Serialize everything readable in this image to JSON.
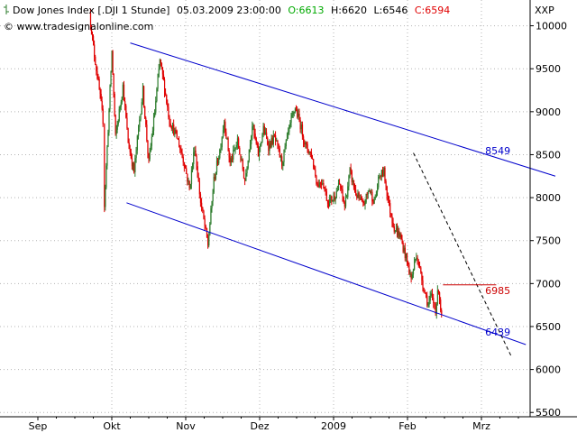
{
  "header": {
    "symbol_icon": "candlestick-icon",
    "instrument": "Dow Jones Index [.DJI  1 Stunde]",
    "datetime": "05.03.2009 23:00:00",
    "open": "O:6613",
    "high": "H:6620",
    "low": "L:6546",
    "close": "C:6594",
    "source": "© www.tradesignalonline.com",
    "axis_unit": "XXP"
  },
  "colors": {
    "up": "#2e7d2e",
    "down": "#e00000",
    "channel": "#0000cc",
    "trend": "#000000",
    "close_line": "#cc0000",
    "grid": "#b4b4b4"
  },
  "chart_data": {
    "type": "candlestick",
    "title": "Dow Jones Index [.DJI  1 Stunde]",
    "ylim": [
      5450,
      10300
    ],
    "y_ticks": [
      5500,
      6000,
      6500,
      7000,
      7500,
      8000,
      8500,
      9000,
      9500,
      10000
    ],
    "x_tick_labels": [
      "Sep",
      "Okt",
      "Nov",
      "Dez",
      "2009",
      "Feb",
      "Mrz"
    ],
    "x_tick_positions": [
      0.0,
      1.0,
      2.0,
      3.0,
      4.0,
      5.0,
      6.0
    ],
    "x_range": [
      0.0,
      7.0
    ],
    "grid": true,
    "price_path": [
      [
        0.7,
        10150
      ],
      [
        0.75,
        9750
      ],
      [
        0.83,
        9250
      ],
      [
        0.88,
        8900
      ],
      [
        0.9,
        7920
      ],
      [
        0.95,
        8800
      ],
      [
        1.0,
        9700
      ],
      [
        1.05,
        8700
      ],
      [
        1.1,
        9000
      ],
      [
        1.15,
        9300
      ],
      [
        1.22,
        8650
      ],
      [
        1.3,
        8300
      ],
      [
        1.36,
        8800
      ],
      [
        1.42,
        9250
      ],
      [
        1.5,
        8400
      ],
      [
        1.58,
        9000
      ],
      [
        1.65,
        9600
      ],
      [
        1.7,
        9350
      ],
      [
        1.78,
        8900
      ],
      [
        1.88,
        8700
      ],
      [
        1.98,
        8400
      ],
      [
        2.05,
        8100
      ],
      [
        2.12,
        8600
      ],
      [
        2.2,
        7950
      ],
      [
        2.3,
        7450
      ],
      [
        2.38,
        8200
      ],
      [
        2.46,
        8550
      ],
      [
        2.52,
        8900
      ],
      [
        2.6,
        8400
      ],
      [
        2.7,
        8650
      ],
      [
        2.8,
        8200
      ],
      [
        2.9,
        8850
      ],
      [
        2.98,
        8500
      ],
      [
        3.05,
        8800
      ],
      [
        3.12,
        8600
      ],
      [
        3.2,
        8700
      ],
      [
        3.3,
        8400
      ],
      [
        3.4,
        8800
      ],
      [
        3.48,
        9050
      ],
      [
        3.55,
        8850
      ],
      [
        3.62,
        8600
      ],
      [
        3.7,
        8500
      ],
      [
        3.78,
        8150
      ],
      [
        3.85,
        8200
      ],
      [
        3.92,
        7950
      ],
      [
        4.0,
        8000
      ],
      [
        4.08,
        8150
      ],
      [
        4.15,
        7900
      ],
      [
        4.22,
        8300
      ],
      [
        4.3,
        8050
      ],
      [
        4.4,
        7900
      ],
      [
        4.48,
        8100
      ],
      [
        4.55,
        7950
      ],
      [
        4.62,
        8250
      ],
      [
        4.68,
        8300
      ],
      [
        4.75,
        7900
      ],
      [
        4.82,
        7650
      ],
      [
        4.9,
        7550
      ],
      [
        4.98,
        7300
      ],
      [
        5.05,
        7050
      ],
      [
        5.12,
        7350
      ],
      [
        5.18,
        7100
      ],
      [
        5.22,
        6950
      ],
      [
        5.28,
        6750
      ],
      [
        5.32,
        6850
      ],
      [
        5.38,
        6700
      ],
      [
        5.42,
        6950
      ],
      [
        5.46,
        6594
      ]
    ],
    "channel_upper": {
      "start": [
        1.25,
        9800
      ],
      "end": [
        7.0,
        8250
      ]
    },
    "channel_lower": {
      "start": [
        1.2,
        7940
      ],
      "end": [
        6.6,
        6290
      ]
    },
    "trend_line": {
      "start": [
        5.08,
        8520
      ],
      "end": [
        6.4,
        6160
      ]
    },
    "close_line": {
      "start": [
        5.48,
        6985
      ],
      "end": [
        6.2,
        6985
      ]
    },
    "annotations": [
      {
        "text": "8549",
        "x": 6.05,
        "y": 8549,
        "color": "#0000cc"
      },
      {
        "text": "6985",
        "x": 6.05,
        "y": 6920,
        "color": "#cc0000"
      },
      {
        "text": "6439",
        "x": 6.05,
        "y": 6439,
        "color": "#0000cc"
      }
    ]
  }
}
